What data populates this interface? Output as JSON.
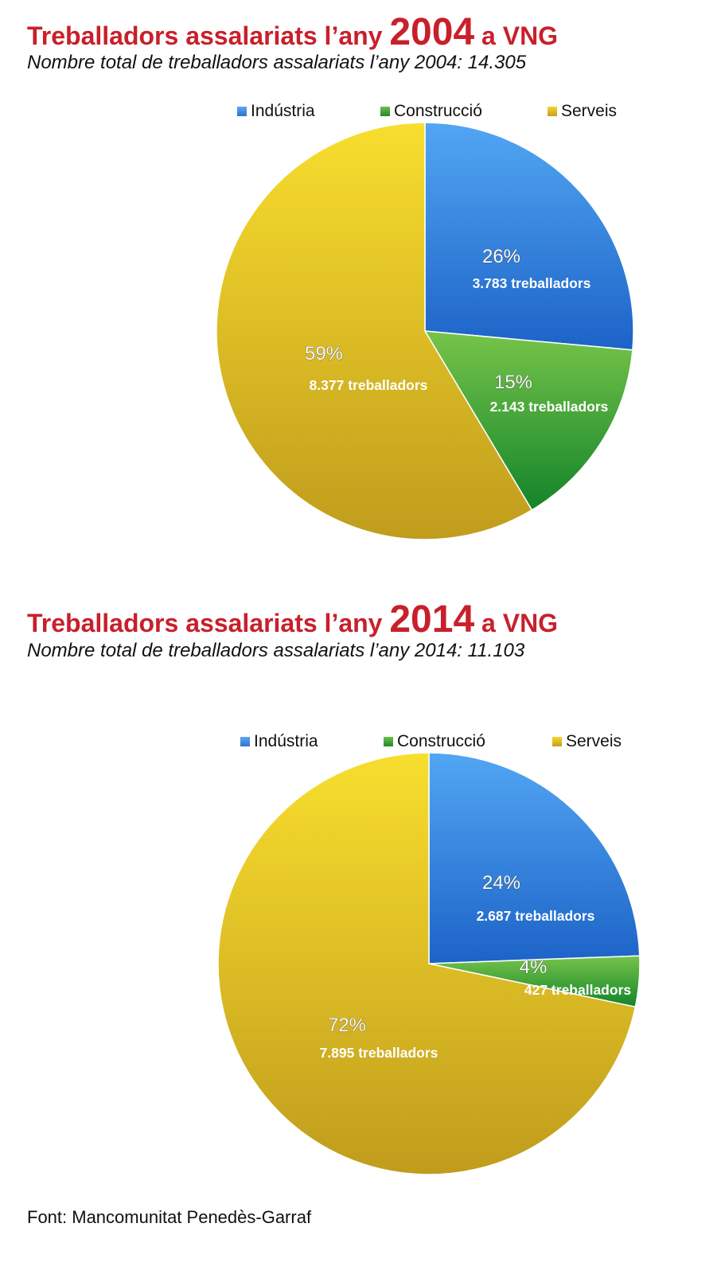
{
  "colors": {
    "title": "#c8202b",
    "industria": "#3f8fe4",
    "construccio": "#4cae3c",
    "serveis": "#e8c82c"
  },
  "chart_data": [
    {
      "type": "pie",
      "title_prefix": "Treballadors assalariats l’any",
      "title_year": "2004",
      "title_suffix": "a VNG",
      "subtitle": "Nombre total de treballadors assalariats l’any 2004: 14.305",
      "legend_position": "top",
      "legend": [
        "Indústria",
        "Construcció",
        "Serveis"
      ],
      "slices": [
        {
          "label": "Indústria",
          "value": 3783,
          "percent_label": "26%",
          "count_label": "3.783 treballadors"
        },
        {
          "label": "Construcció",
          "value": 2143,
          "percent_label": "15%",
          "count_label": "2.143 treballadors"
        },
        {
          "label": "Serveis",
          "value": 8377,
          "percent_label": "59%",
          "count_label": "8.377 treballadors"
        }
      ]
    },
    {
      "type": "pie",
      "title_prefix": "Treballadors assalariats l’any",
      "title_year": "2014",
      "title_suffix": "a VNG",
      "subtitle": "Nombre total de treballadors assalariats l’any 2014: 11.103",
      "legend_position": "top",
      "legend": [
        "Indústria",
        "Construcció",
        "Serveis"
      ],
      "slices": [
        {
          "label": "Indústria",
          "value": 2687,
          "percent_label": "24%",
          "count_label": "2.687 treballadors"
        },
        {
          "label": "Construcció",
          "value": 427,
          "percent_label": "4%",
          "count_label": "427 treballadors"
        },
        {
          "label": "Serveis",
          "value": 7895,
          "percent_label": "72%",
          "count_label": "7.895 treballadors"
        }
      ]
    }
  ],
  "source": "Font: Mancomunitat Penedès-Garraf"
}
